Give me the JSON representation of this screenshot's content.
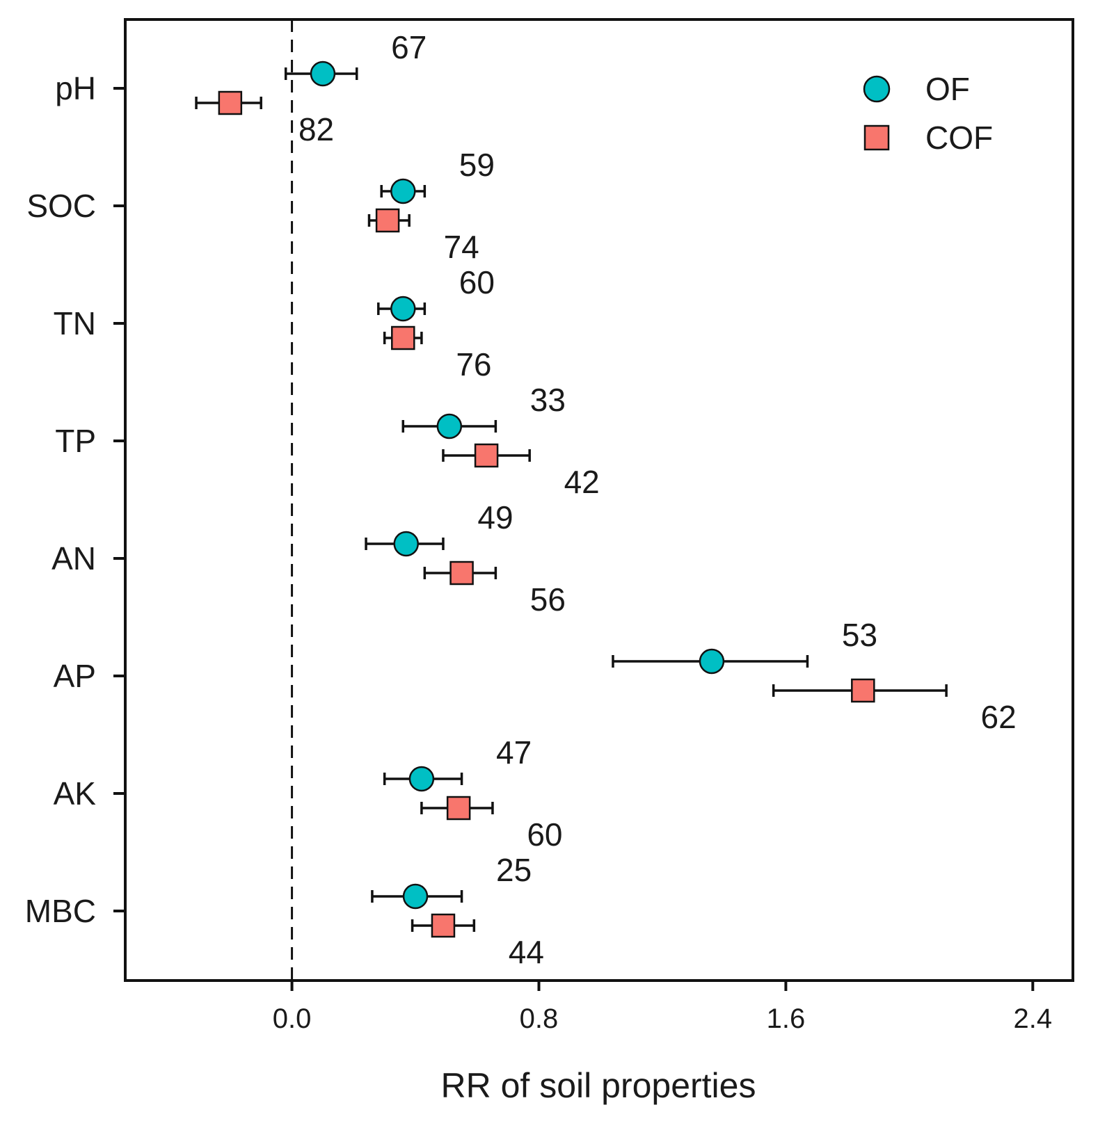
{
  "chart_data": {
    "type": "scatter",
    "subtype": "forest-plot",
    "title": "",
    "xlabel": "RR of soil properties",
    "ylabel": "",
    "xlim": [
      -0.54,
      2.53
    ],
    "xticks": [
      0.0,
      0.8,
      1.6,
      2.4
    ],
    "xtick_labels": [
      "0.0",
      "0.8",
      "1.6",
      "2.4"
    ],
    "reference_line": 0.0,
    "grid": false,
    "legend_position": "top-right",
    "categories": [
      "pH",
      "SOC",
      "TN",
      "TP",
      "AN",
      "AP",
      "AK",
      "MBC"
    ],
    "series": [
      {
        "name": "OF",
        "marker": "circle",
        "color": "#00BFC4",
        "values": [
          0.1,
          0.36,
          0.36,
          0.51,
          0.37,
          1.36,
          0.42,
          0.4
        ],
        "ci_low": [
          -0.02,
          0.29,
          0.28,
          0.36,
          0.24,
          1.04,
          0.3,
          0.26
        ],
        "ci_high": [
          0.21,
          0.43,
          0.43,
          0.66,
          0.49,
          1.67,
          0.55,
          0.55
        ],
        "n_labels": [
          "67",
          "59",
          "60",
          "33",
          "49",
          "53",
          "47",
          "25"
        ]
      },
      {
        "name": "COF",
        "marker": "square",
        "color": "#F8766D",
        "values": [
          -0.2,
          0.31,
          0.36,
          0.63,
          0.55,
          1.85,
          0.54,
          0.49
        ],
        "ci_low": [
          -0.31,
          0.25,
          0.3,
          0.49,
          0.43,
          1.56,
          0.42,
          0.39
        ],
        "ci_high": [
          -0.1,
          0.38,
          0.42,
          0.77,
          0.66,
          2.12,
          0.65,
          0.59
        ],
        "n_labels": [
          "82",
          "74",
          "76",
          "42",
          "56",
          "62",
          "60",
          "44"
        ]
      }
    ]
  }
}
